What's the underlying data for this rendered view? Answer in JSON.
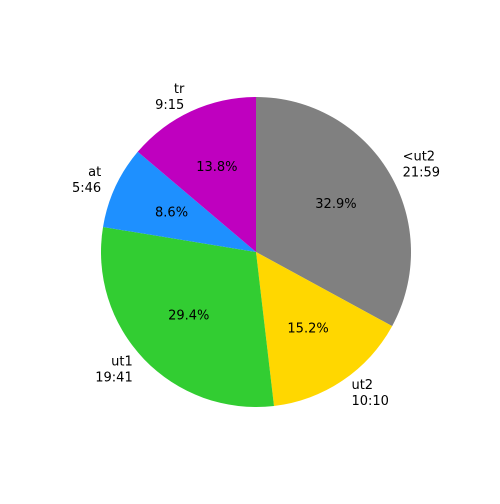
{
  "chart_data": {
    "type": "pie",
    "categories": [
      "<ut2",
      "ut2",
      "ut1",
      "at",
      "tr"
    ],
    "times": [
      "21:59",
      "10:10",
      "19:41",
      "5:46",
      "9:15"
    ],
    "values": [
      32.9,
      15.2,
      29.4,
      8.6,
      13.8
    ],
    "value_labels": [
      "32.9%",
      "15.2%",
      "29.4%",
      "8.6%",
      "13.8%"
    ],
    "colors": [
      "#808080",
      "#ffd700",
      "#32cd32",
      "#1e90ff",
      "#bf00bf"
    ],
    "start_angle": 90,
    "direction": "clockwise"
  }
}
